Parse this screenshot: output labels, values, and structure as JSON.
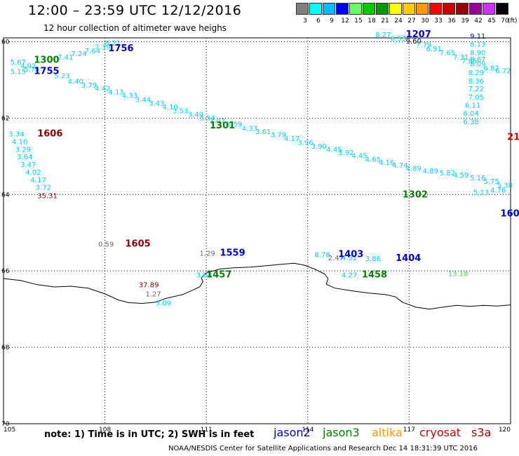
{
  "header": {
    "title": "12:00 – 23:59 UTC 12/12/2016",
    "subtitle": "12 hour collection of altimeter wave heighs"
  },
  "legend": {
    "labels": [
      "3",
      "6",
      "9",
      "12",
      "15",
      "18",
      "21",
      "24",
      "27",
      "30",
      "33",
      "36",
      "39",
      "42",
      "45",
      "70"
    ],
    "unit": "(ft)",
    "colors": [
      "#7f7f7f",
      "#00ffff",
      "#00bfff",
      "#0000ff",
      "#66ff66",
      "#00cc00",
      "#009900",
      "#ffff00",
      "#ffcc00",
      "#ff9900",
      "#ff0000",
      "#cc0000",
      "#990000",
      "#990099",
      "#cc33ff",
      "#000000"
    ]
  },
  "axes": {
    "lon_labels": [
      "105",
      "108",
      "111",
      "114",
      "117",
      "120"
    ],
    "lat_labels": [
      "60",
      "62",
      "64",
      "66",
      "68",
      "70"
    ],
    "lon_range": [
      105,
      120
    ],
    "lat_range": [
      59.9,
      70.0
    ]
  },
  "colors": {
    "cyan": "#00ccff",
    "jason2": "#0000cc",
    "jason3": "#008000",
    "altika": "#ff9900",
    "cryosat": "#cc0000",
    "s3a": "#990000",
    "darkred": "#880000",
    "gray": "#666666",
    "lightgreen": "#44cc44"
  },
  "footer": {
    "note": "note:  1) Time is in UTC;  2) SWH is in feet",
    "credit": "NOAA/NESDIS Center for Satellite Applications and Research   Dec 14 18:31:39 UTC 2016",
    "satellites": [
      {
        "name": "jason2",
        "color": "#0000cc"
      },
      {
        "name": "jason3",
        "color": "#008000"
      },
      {
        "name": "altika",
        "color": "#ff9900"
      },
      {
        "name": "cryosat",
        "color": "#cc0000"
      },
      {
        "name": "s3a",
        "color": "#990000"
      }
    ]
  },
  "pass_labels": [
    {
      "text": "1756",
      "lon": 108.1,
      "lat": 60.25,
      "color": "#0000cc"
    },
    {
      "text": "1300",
      "lon": 105.9,
      "lat": 60.55,
      "color": "#008000"
    },
    {
      "text": "1755",
      "lon": 105.9,
      "lat": 60.85,
      "color": "#0000cc"
    },
    {
      "text": "1606",
      "lon": 106.0,
      "lat": 62.48,
      "color": "#880000"
    },
    {
      "text": "1301",
      "lon": 111.1,
      "lat": 62.27,
      "color": "#008000"
    },
    {
      "text": "1207",
      "lon": 116.9,
      "lat": 59.88,
      "color": "#0000cc"
    },
    {
      "text": "21",
      "lon": 119.9,
      "lat": 62.57,
      "color": "#cc0000"
    },
    {
      "text": "1302",
      "lon": 116.8,
      "lat": 64.08,
      "color": "#008000"
    },
    {
      "text": "160",
      "lon": 119.7,
      "lat": 64.57,
      "color": "#0000cc"
    },
    {
      "text": "1605",
      "lon": 108.6,
      "lat": 65.36,
      "color": "#880000"
    },
    {
      "text": "1559",
      "lon": 111.4,
      "lat": 65.6,
      "color": "#0000cc"
    },
    {
      "text": "1403",
      "lon": 114.9,
      "lat": 65.64,
      "color": "#0000cc"
    },
    {
      "text": "1404",
      "lon": 116.6,
      "lat": 65.74,
      "color": "#0000cc"
    },
    {
      "text": "1457",
      "lon": 111.0,
      "lat": 66.17,
      "color": "#008000"
    },
    {
      "text": "1458",
      "lon": 115.6,
      "lat": 66.17,
      "color": "#008000"
    }
  ],
  "wave_values": [
    {
      "text": "8.21",
      "lon": 108.0,
      "lat": 60.1,
      "color": "#00ccff"
    },
    {
      "text": "7.39",
      "lon": 107.7,
      "lat": 60.2,
      "color": "#00ccff"
    },
    {
      "text": "7.64",
      "lon": 107.4,
      "lat": 60.3,
      "color": "#00ccff"
    },
    {
      "text": "7.24",
      "lon": 107.0,
      "lat": 60.38,
      "color": "#00ccff"
    },
    {
      "text": "7.41",
      "lon": 106.6,
      "lat": 60.47,
      "color": "#00ccff"
    },
    {
      "text": "5.67",
      "lon": 105.2,
      "lat": 60.6,
      "color": "#00ccff"
    },
    {
      "text": "4.92",
      "lon": 105.5,
      "lat": 60.7,
      "color": "#00ccff"
    },
    {
      "text": "5.78",
      "lon": 105.6,
      "lat": 60.78,
      "color": "#00ccff"
    },
    {
      "text": "5.15",
      "lon": 105.2,
      "lat": 60.85,
      "color": "#00ccff"
    },
    {
      "text": "5.23",
      "lon": 106.5,
      "lat": 60.96,
      "color": "#00ccff"
    },
    {
      "text": "4.40",
      "lon": 106.9,
      "lat": 61.1,
      "color": "#00ccff"
    },
    {
      "text": "3.79",
      "lon": 107.3,
      "lat": 61.2,
      "color": "#00ccff"
    },
    {
      "text": "4.42",
      "lon": 107.7,
      "lat": 61.29,
      "color": "#00ccff"
    },
    {
      "text": "4.13",
      "lon": 108.1,
      "lat": 61.38,
      "color": "#00ccff"
    },
    {
      "text": "4.33",
      "lon": 108.5,
      "lat": 61.47,
      "color": "#00ccff"
    },
    {
      "text": "3.44",
      "lon": 108.9,
      "lat": 61.58,
      "color": "#00ccff"
    },
    {
      "text": "3.43",
      "lon": 109.3,
      "lat": 61.67,
      "color": "#00ccff"
    },
    {
      "text": "4.10",
      "lon": 109.7,
      "lat": 61.77,
      "color": "#00ccff"
    },
    {
      "text": "3.53",
      "lon": 110.0,
      "lat": 61.87,
      "color": "#00ccff"
    },
    {
      "text": "3.49",
      "lon": 110.45,
      "lat": 61.97,
      "color": "#00ccff"
    },
    {
      "text": "3.54",
      "lon": 110.8,
      "lat": 62.06,
      "color": "#00ccff"
    },
    {
      "text": "3.07",
      "lon": 111.1,
      "lat": 62.14,
      "color": "#00ccff"
    },
    {
      "text": "3.59",
      "lon": 111.6,
      "lat": 62.22,
      "color": "#00ccff"
    },
    {
      "text": "4.33",
      "lon": 112.05,
      "lat": 62.33,
      "color": "#00ccff"
    },
    {
      "text": "3.61",
      "lon": 112.45,
      "lat": 62.42,
      "color": "#00ccff"
    },
    {
      "text": "3.79",
      "lon": 112.9,
      "lat": 62.5,
      "color": "#00ccff"
    },
    {
      "text": "4.17",
      "lon": 113.3,
      "lat": 62.6,
      "color": "#00ccff"
    },
    {
      "text": "3.96",
      "lon": 113.7,
      "lat": 62.7,
      "color": "#00ccff"
    },
    {
      "text": "3.90",
      "lon": 114.1,
      "lat": 62.8,
      "color": "#00ccff"
    },
    {
      "text": "4.45",
      "lon": 114.55,
      "lat": 62.88,
      "color": "#00ccff"
    },
    {
      "text": "3.92",
      "lon": 114.9,
      "lat": 62.97,
      "color": "#00ccff"
    },
    {
      "text": "4.45",
      "lon": 115.3,
      "lat": 63.05,
      "color": "#00ccff"
    },
    {
      "text": "4.65",
      "lon": 115.7,
      "lat": 63.14,
      "color": "#00ccff"
    },
    {
      "text": "4.16",
      "lon": 116.1,
      "lat": 63.22,
      "color": "#00ccff"
    },
    {
      "text": "4.74",
      "lon": 116.5,
      "lat": 63.3,
      "color": "#00ccff"
    },
    {
      "text": "4.89",
      "lon": 116.9,
      "lat": 63.38,
      "color": "#00ccff"
    },
    {
      "text": "4.89",
      "lon": 117.4,
      "lat": 63.44,
      "color": "#00ccff"
    },
    {
      "text": "5.82",
      "lon": 117.9,
      "lat": 63.5,
      "color": "#00ccff"
    },
    {
      "text": "4.59",
      "lon": 118.3,
      "lat": 63.55,
      "color": "#00ccff"
    },
    {
      "text": "5.16",
      "lon": 118.8,
      "lat": 63.63,
      "color": "#00ccff"
    },
    {
      "text": "5.75",
      "lon": 119.2,
      "lat": 63.72,
      "color": "#00ccff"
    },
    {
      "text": "5.38",
      "lon": 119.6,
      "lat": 63.82,
      "color": "#00ccff"
    },
    {
      "text": "5.13",
      "lon": 118.9,
      "lat": 64.0,
      "color": "#00ccff"
    },
    {
      "text": "4.76",
      "lon": 119.4,
      "lat": 63.95,
      "color": "#00ccff"
    },
    {
      "text": "3.34",
      "lon": 105.15,
      "lat": 62.48,
      "color": "#00ccff"
    },
    {
      "text": "4.10",
      "lon": 105.25,
      "lat": 62.68,
      "color": "#00ccff"
    },
    {
      "text": "3.29",
      "lon": 105.35,
      "lat": 62.88,
      "color": "#00ccff"
    },
    {
      "text": "3.64",
      "lon": 105.4,
      "lat": 63.08,
      "color": "#00ccff"
    },
    {
      "text": "3.47",
      "lon": 105.5,
      "lat": 63.28,
      "color": "#00ccff"
    },
    {
      "text": "4.02",
      "lon": 105.65,
      "lat": 63.48,
      "color": "#00ccff"
    },
    {
      "text": "4.17",
      "lon": 105.8,
      "lat": 63.68,
      "color": "#00ccff"
    },
    {
      "text": "3.72",
      "lon": 105.95,
      "lat": 63.88,
      "color": "#00ccff"
    },
    {
      "text": "35.31",
      "lon": 106.0,
      "lat": 64.1,
      "color": "#880000"
    },
    {
      "text": "8.27",
      "lon": 116.0,
      "lat": 59.88,
      "color": "#00ccff"
    },
    {
      "text": "6.53",
      "lon": 116.45,
      "lat": 59.97,
      "color": "#00ccff"
    },
    {
      "text": "9.60",
      "lon": 116.9,
      "lat": 60.05,
      "color": "#000000"
    },
    {
      "text": "7.79",
      "lon": 117.2,
      "lat": 60.15,
      "color": "#00ccff"
    },
    {
      "text": "6.91",
      "lon": 117.5,
      "lat": 60.25,
      "color": "#00ccff"
    },
    {
      "text": "7.65",
      "lon": 117.9,
      "lat": 60.35,
      "color": "#00ccff"
    },
    {
      "text": "7.31",
      "lon": 118.3,
      "lat": 60.47,
      "color": "#00ccff"
    },
    {
      "text": "7.85",
      "lon": 118.55,
      "lat": 60.57,
      "color": "#00ccff"
    },
    {
      "text": "9.11",
      "lon": 118.8,
      "lat": 59.92,
      "color": "#0000cc"
    },
    {
      "text": "8.13",
      "lon": 118.8,
      "lat": 60.13,
      "color": "#00ccff"
    },
    {
      "text": "8.90",
      "lon": 118.8,
      "lat": 60.35,
      "color": "#00ccff"
    },
    {
      "text": "8.67",
      "lon": 118.8,
      "lat": 60.52,
      "color": "#00ccff"
    },
    {
      "text": "8.09",
      "lon": 118.8,
      "lat": 60.64,
      "color": "#00ccff"
    },
    {
      "text": "6.82",
      "lon": 119.2,
      "lat": 60.75,
      "color": "#00ccff"
    },
    {
      "text": "6.72",
      "lon": 119.55,
      "lat": 60.83,
      "color": "#00ccff"
    },
    {
      "text": "8.29",
      "lon": 118.75,
      "lat": 60.87,
      "color": "#00ccff"
    },
    {
      "text": "8.36",
      "lon": 118.75,
      "lat": 61.09,
      "color": "#00ccff"
    },
    {
      "text": "7.22",
      "lon": 118.75,
      "lat": 61.3,
      "color": "#00ccff"
    },
    {
      "text": "7.05",
      "lon": 118.75,
      "lat": 61.52,
      "color": "#00ccff"
    },
    {
      "text": "6.11",
      "lon": 118.65,
      "lat": 61.73,
      "color": "#00ccff"
    },
    {
      "text": "6.04",
      "lon": 118.6,
      "lat": 61.94,
      "color": "#00ccff"
    },
    {
      "text": "6.38",
      "lon": 118.6,
      "lat": 62.16,
      "color": "#00ccff"
    },
    {
      "text": "0.59",
      "lon": 107.8,
      "lat": 65.36,
      "color": "#666666"
    },
    {
      "text": "1.29",
      "lon": 110.8,
      "lat": 65.6,
      "color": "#666666"
    },
    {
      "text": "8.78",
      "lon": 114.2,
      "lat": 65.64,
      "color": "#00ccff"
    },
    {
      "text": "2.47",
      "lon": 114.6,
      "lat": 65.72,
      "color": "#666666"
    },
    {
      "text": "4.51",
      "lon": 115.0,
      "lat": 65.72,
      "color": "#00ccff"
    },
    {
      "text": "3.86",
      "lon": 115.7,
      "lat": 65.74,
      "color": "#00ccff"
    },
    {
      "text": "3.68",
      "lon": 110.7,
      "lat": 66.17,
      "color": "#00ccff"
    },
    {
      "text": "4.27",
      "lon": 115.0,
      "lat": 66.17,
      "color": "#00ccff"
    },
    {
      "text": "13.18",
      "lon": 118.15,
      "lat": 66.13,
      "color": "#44cc44"
    },
    {
      "text": "37.89",
      "lon": 109.0,
      "lat": 66.43,
      "color": "#880000"
    },
    {
      "text": "1.27",
      "lon": 109.2,
      "lat": 66.67,
      "color": "#666666"
    },
    {
      "text": "3.09",
      "lon": 109.5,
      "lat": 66.91,
      "color": "#00ccff"
    }
  ],
  "coastline": [
    [
      105.0,
      66.2
    ],
    [
      105.5,
      66.25
    ],
    [
      106.0,
      66.36
    ],
    [
      106.5,
      66.42
    ],
    [
      107.0,
      66.4
    ],
    [
      107.5,
      66.45
    ],
    [
      108.0,
      66.6
    ],
    [
      108.4,
      66.76
    ],
    [
      108.7,
      66.83
    ],
    [
      109.1,
      66.85
    ],
    [
      109.5,
      66.82
    ],
    [
      109.8,
      66.72
    ],
    [
      110.3,
      66.62
    ],
    [
      110.6,
      66.5
    ],
    [
      110.8,
      66.42
    ],
    [
      110.9,
      66.28
    ],
    [
      110.85,
      66.18
    ],
    [
      111.0,
      66.05
    ],
    [
      111.4,
      65.95
    ],
    [
      111.8,
      65.92
    ],
    [
      112.3,
      65.9
    ],
    [
      112.8,
      65.86
    ],
    [
      113.3,
      65.82
    ],
    [
      113.6,
      65.8
    ],
    [
      113.9,
      65.85
    ],
    [
      114.2,
      65.95
    ],
    [
      114.5,
      66.08
    ],
    [
      114.6,
      66.2
    ],
    [
      114.55,
      66.35
    ],
    [
      114.8,
      66.45
    ],
    [
      115.3,
      66.52
    ],
    [
      115.8,
      66.58
    ],
    [
      116.3,
      66.62
    ],
    [
      116.6,
      66.68
    ],
    [
      116.8,
      66.82
    ],
    [
      117.2,
      66.95
    ],
    [
      117.6,
      67.0
    ],
    [
      118.0,
      66.95
    ],
    [
      118.4,
      66.9
    ],
    [
      118.8,
      66.93
    ],
    [
      119.2,
      66.9
    ],
    [
      119.6,
      66.92
    ],
    [
      120.0,
      66.89
    ]
  ]
}
